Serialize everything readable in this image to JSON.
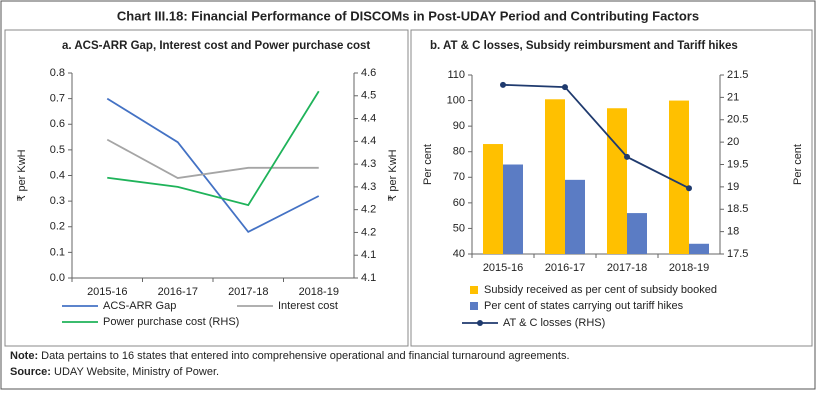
{
  "title": "Chart III.18: Financial Performance of DISCOMs in Post-UDAY Period and Contributing Factors",
  "chart_data": [
    {
      "type": "line",
      "title": "a. ACS-ARR Gap, Interest cost and Power purchase cost",
      "categories": [
        "2015-16",
        "2016-17",
        "2017-18",
        "2018-19"
      ],
      "ylabel": "₹ per KwH",
      "y2label": "₹ per KwH",
      "series": [
        {
          "name": "ACS-ARR Gap",
          "color": "#4472c4",
          "values": [
            0.7,
            0.53,
            0.18,
            0.32
          ]
        },
        {
          "name": "Interest cost",
          "color": "#a5a5a5",
          "values": [
            0.54,
            0.39,
            0.43,
            0.43
          ]
        },
        {
          "name": "Power purchase cost (RHS)",
          "color": "#1fb35a",
          "axis": "y2",
          "values": [
            4.32,
            4.3,
            4.26,
            4.51
          ]
        }
      ],
      "ylim": [
        0,
        0.8
      ],
      "yticks": [
        {
          "value": 0,
          "label": "0.0"
        },
        0.1,
        0.2,
        0.3,
        0.4,
        0.5,
        0.6,
        0.7,
        0.8
      ],
      "y2lim": [
        4.1,
        4.55
      ],
      "y2ticks": [
        4.1,
        {
          "value": 4.15,
          "label": "4.1"
        },
        4.2,
        {
          "value": 4.25,
          "label": "4.2"
        },
        4.3,
        {
          "value": 4.35,
          "label": "4.3"
        },
        4.4,
        {
          "value": 4.45,
          "label": "4.4"
        },
        4.5,
        {
          "value": 4.55,
          "label": "4.6"
        }
      ],
      "grid": false
    },
    {
      "type": "bar",
      "title": "b. AT & C losses, Subsidy reimbursment and Tariff hikes",
      "categories": [
        "2015-16",
        "2016-17",
        "2017-18",
        "2018-19"
      ],
      "ylabel": "Per cent",
      "y2label": "Per cent",
      "series": [
        {
          "name": "Subsidy received as per cent of subsidy booked",
          "color": "#ffc000",
          "values": [
            83,
            100.5,
            97,
            100
          ]
        },
        {
          "name": "Per cent of states carrying out tariff hikes",
          "color": "#5b7cc4",
          "values": [
            75,
            69,
            56,
            44
          ]
        },
        {
          "name": "AT & C losses (RHS)",
          "color": "#1f3a6e",
          "type": "line",
          "axis": "y2",
          "values": [
            21.28,
            21.23,
            19.67,
            18.97
          ]
        }
      ],
      "ylim": [
        40,
        110
      ],
      "yticks": [
        40,
        50,
        60,
        70,
        80,
        90,
        100,
        110
      ],
      "y2lim": [
        17.5,
        21.5
      ],
      "y2ticks": [
        17.5,
        18,
        18.5,
        19,
        19.5,
        20,
        20.5,
        21,
        21.5
      ],
      "grid": false
    }
  ],
  "note": {
    "label": "Note:",
    "text": "Data pertains to 16 states that entered into comprehensive operational and financial turnaround agreements."
  },
  "source": {
    "label": "Source:",
    "text": "UDAY Website, Ministry of Power."
  }
}
